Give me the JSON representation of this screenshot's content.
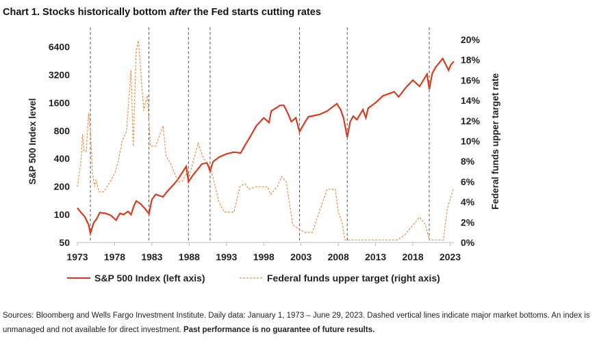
{
  "chart_data": {
    "type": "line",
    "title": {
      "pre": "Chart 1. Stocks historically bottom ",
      "em": "after",
      "post": " the Fed starts cutting rates"
    },
    "xlabel": "",
    "ylabel_left": "S&P 500 Index level",
    "ylabel_right": "Federal funds upper target rate",
    "xlim": [
      1973,
      2023.5
    ],
    "x_ticks": [
      "1973",
      "1978",
      "1983",
      "1988",
      "1993",
      "1998",
      "2003",
      "2008",
      "2013",
      "2018",
      "2023"
    ],
    "y_left_scale": "log2",
    "y_left_ticks": [
      "50",
      "100",
      "200",
      "400",
      "800",
      "1600",
      "3200",
      "6400"
    ],
    "y_left_range": [
      50,
      10240
    ],
    "y_right_ticks": [
      "0%",
      "2%",
      "4%",
      "6%",
      "8%",
      "10%",
      "12%",
      "14%",
      "16%",
      "18%",
      "20%"
    ],
    "y_right_range": [
      0,
      20
    ],
    "market_bottoms": [
      1974.75,
      1982.6,
      1987.9,
      1990.8,
      2002.8,
      2009.2,
      2020.2
    ],
    "series": [
      {
        "name": "S&P 500 Index (left axis)",
        "axis": "left",
        "color": "#d43a1e",
        "style": "solid",
        "points": [
          [
            1973,
            118
          ],
          [
            1973.5,
            105
          ],
          [
            1974,
            95
          ],
          [
            1974.5,
            78
          ],
          [
            1974.75,
            63
          ],
          [
            1975.2,
            82
          ],
          [
            1975.6,
            90
          ],
          [
            1976,
            105
          ],
          [
            1976.8,
            103
          ],
          [
            1977.5,
            98
          ],
          [
            1978.2,
            87
          ],
          [
            1978.7,
            103
          ],
          [
            1979.2,
            100
          ],
          [
            1979.8,
            108
          ],
          [
            1980.2,
            100
          ],
          [
            1980.6,
            125
          ],
          [
            1980.9,
            140
          ],
          [
            1981.5,
            130
          ],
          [
            1982.1,
            115
          ],
          [
            1982.6,
            102
          ],
          [
            1983,
            145
          ],
          [
            1983.5,
            165
          ],
          [
            1984.5,
            155
          ],
          [
            1985,
            175
          ],
          [
            1985.9,
            210
          ],
          [
            1986.5,
            240
          ],
          [
            1987.6,
            330
          ],
          [
            1987.9,
            225
          ],
          [
            1988.5,
            265
          ],
          [
            1989.7,
            350
          ],
          [
            1990.4,
            360
          ],
          [
            1990.8,
            295
          ],
          [
            1991.2,
            370
          ],
          [
            1992,
            415
          ],
          [
            1993,
            450
          ],
          [
            1994,
            470
          ],
          [
            1994.9,
            460
          ],
          [
            1995.5,
            560
          ],
          [
            1996,
            650
          ],
          [
            1997,
            900
          ],
          [
            1998,
            1100
          ],
          [
            1998.7,
            980
          ],
          [
            1999,
            1300
          ],
          [
            2000.2,
            1500
          ],
          [
            2000.7,
            1500
          ],
          [
            2001.3,
            1200
          ],
          [
            2001.7,
            1000
          ],
          [
            2002.3,
            1100
          ],
          [
            2002.8,
            780
          ],
          [
            2003.5,
            980
          ],
          [
            2004,
            1130
          ],
          [
            2005.5,
            1200
          ],
          [
            2006.5,
            1300
          ],
          [
            2007.8,
            1560
          ],
          [
            2008.3,
            1350
          ],
          [
            2008.7,
            1100
          ],
          [
            2009.2,
            680
          ],
          [
            2009.6,
            1000
          ],
          [
            2010,
            1150
          ],
          [
            2010.5,
            1050
          ],
          [
            2011.3,
            1350
          ],
          [
            2011.7,
            1100
          ],
          [
            2012,
            1400
          ],
          [
            2013,
            1600
          ],
          [
            2014,
            1900
          ],
          [
            2015.5,
            2100
          ],
          [
            2016.1,
            1850
          ],
          [
            2017,
            2300
          ],
          [
            2018,
            2800
          ],
          [
            2018.9,
            2400
          ],
          [
            2019.9,
            3250
          ],
          [
            2020.2,
            2240
          ],
          [
            2020.6,
            3300
          ],
          [
            2021,
            3800
          ],
          [
            2022,
            4790
          ],
          [
            2022.8,
            3580
          ],
          [
            2023.1,
            4100
          ],
          [
            2023.5,
            4450
          ]
        ]
      },
      {
        "name": "Federal funds upper target (right axis)",
        "axis": "right",
        "color": "#f08a3c",
        "style": "dashed",
        "points": [
          [
            1973,
            5.5
          ],
          [
            1973.5,
            8
          ],
          [
            1973.7,
            10.7
          ],
          [
            1973.9,
            9
          ],
          [
            1974.2,
            9
          ],
          [
            1974.5,
            12.8
          ],
          [
            1974.75,
            11
          ],
          [
            1975,
            7
          ],
          [
            1975.3,
            5.5
          ],
          [
            1975.5,
            6.2
          ],
          [
            1975.9,
            5
          ],
          [
            1976.5,
            5
          ],
          [
            1977,
            5.5
          ],
          [
            1978,
            6.8
          ],
          [
            1978.5,
            8
          ],
          [
            1979,
            10
          ],
          [
            1979.6,
            11
          ],
          [
            1980.2,
            17
          ],
          [
            1980.5,
            9.5
          ],
          [
            1980.9,
            19
          ],
          [
            1981.2,
            19.9
          ],
          [
            1981.5,
            17
          ],
          [
            1981.9,
            13
          ],
          [
            1982.4,
            14.5
          ],
          [
            1982.8,
            9.5
          ],
          [
            1983.5,
            9.5
          ],
          [
            1984.5,
            11.5
          ],
          [
            1984.9,
            8.5
          ],
          [
            1985.5,
            7.8
          ],
          [
            1986.5,
            6
          ],
          [
            1987,
            6
          ],
          [
            1987.8,
            7
          ],
          [
            1988,
            6.5
          ],
          [
            1989.2,
            9.8
          ],
          [
            1989.9,
            8.3
          ],
          [
            1990.8,
            7.5
          ],
          [
            1991.5,
            5.5
          ],
          [
            1992,
            4
          ],
          [
            1992.7,
            3
          ],
          [
            1994,
            3
          ],
          [
            1994.8,
            5.5
          ],
          [
            1995.5,
            5.8
          ],
          [
            1996,
            5.25
          ],
          [
            1997,
            5.5
          ],
          [
            1998.5,
            5.5
          ],
          [
            1998.9,
            4.75
          ],
          [
            1999.8,
            5.5
          ],
          [
            2000.4,
            6.5
          ],
          [
            2001,
            6
          ],
          [
            2001.9,
            1.75
          ],
          [
            2002.9,
            1.25
          ],
          [
            2003.5,
            1
          ],
          [
            2004.5,
            1
          ],
          [
            2006.5,
            5.25
          ],
          [
            2007.6,
            5.25
          ],
          [
            2008,
            3
          ],
          [
            2008.5,
            2
          ],
          [
            2008.9,
            0.25
          ],
          [
            2015.9,
            0.25
          ],
          [
            2016.9,
            0.75
          ],
          [
            2018.9,
            2.5
          ],
          [
            2019.7,
            1.75
          ],
          [
            2020.2,
            0.25
          ],
          [
            2022.1,
            0.25
          ],
          [
            2022.6,
            3.25
          ],
          [
            2023.4,
            5.25
          ]
        ]
      }
    ],
    "legend": [
      "S&P 500 Index (left axis)",
      "Federal funds upper target (right axis)"
    ],
    "legend_position": "bottom"
  },
  "source": {
    "text": "Sources: Bloomberg and Wells Fargo Investment Institute. Daily data: January 1, 1973 – June 29, 2023. Dashed vertical lines indicate major market bottoms. An index is unmanaged and not available for direct investment. ",
    "bold": "Past performance is no guarantee of future results."
  }
}
